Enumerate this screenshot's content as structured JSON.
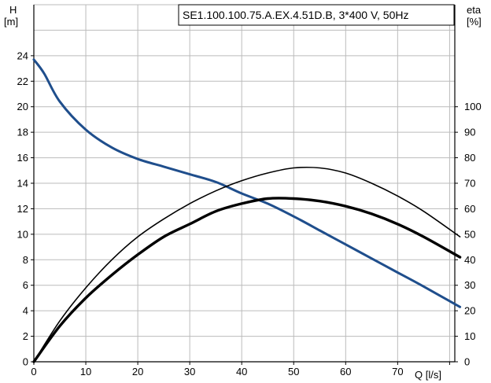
{
  "chart_data": {
    "type": "line",
    "title": "SE1.100.100.75.A.EX.4.51D.B, 3*400 V, 50Hz",
    "xlabel": "Q [l/s]",
    "ylabel_left": {
      "symbol": "H",
      "unit": "[m]"
    },
    "ylabel_right": {
      "symbol": "eta",
      "unit": "[%]"
    },
    "xlim": [
      0,
      81
    ],
    "ylim_left": [
      0,
      28
    ],
    "ylim_right": [
      0,
      140
    ],
    "x_ticks": [
      "0",
      "10",
      "20",
      "30",
      "40",
      "50",
      "60",
      "70"
    ],
    "y_ticks_left": [
      "0",
      "2",
      "4",
      "6",
      "8",
      "10",
      "12",
      "14",
      "16",
      "18",
      "20",
      "22",
      "24"
    ],
    "y_ticks_right": [
      "0",
      "10",
      "20",
      "30",
      "40",
      "50",
      "60",
      "70",
      "80",
      "90",
      "100"
    ],
    "grid": true,
    "series": [
      {
        "axis": "left",
        "color": "#1f4e8c",
        "x": [
          0,
          2,
          5,
          10,
          15,
          20,
          25,
          30,
          35,
          40,
          45,
          50,
          55,
          60,
          65,
          70,
          75,
          82
        ],
        "y": [
          23.7,
          22.6,
          20.4,
          18.2,
          16.8,
          15.9,
          15.3,
          14.7,
          14.1,
          13.2,
          12.4,
          11.4,
          10.3,
          9.2,
          8.1,
          7.0,
          5.9,
          4.3
        ]
      },
      {
        "axis": "right",
        "color": "#000000",
        "x": [
          0,
          5,
          10,
          15,
          20,
          25,
          30,
          35,
          40,
          45,
          50,
          55,
          60,
          65,
          70,
          75,
          82
        ],
        "y": [
          0,
          16,
          29,
          40,
          49,
          56,
          62,
          67,
          71,
          74,
          76,
          76,
          74,
          70,
          65,
          59,
          49
        ]
      },
      {
        "axis": "right",
        "color": "#000000",
        "x": [
          0,
          5,
          10,
          15,
          20,
          25,
          30,
          35,
          40,
          45,
          50,
          55,
          60,
          65,
          70,
          75,
          82
        ],
        "y": [
          0,
          14,
          25,
          34,
          42,
          49,
          54,
          59,
          62,
          64,
          64,
          63,
          61,
          58,
          54,
          49,
          41
        ]
      }
    ]
  }
}
